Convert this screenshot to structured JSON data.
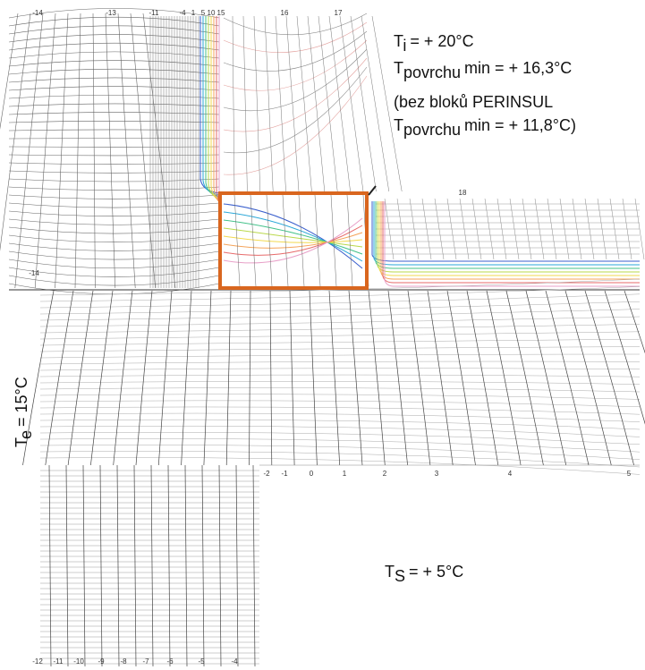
{
  "annotations": {
    "interior": {
      "symbol": "T",
      "subscript": "i",
      "value": "= + 20°C"
    },
    "surface_min": {
      "symbol": "T",
      "subscript": "povrchu",
      "value": "min = + 16,3°C"
    },
    "note": "(bez bloků PERINSUL",
    "surface_min_without": {
      "symbol": "T",
      "subscript": "povrchu",
      "value": "min = + 11,8°C)"
    },
    "exterior": {
      "symbol": "T",
      "subscript": "e",
      "value": "= 15°C"
    },
    "soil": {
      "symbol": "T",
      "subscript": "S",
      "value": "= + 5°C"
    }
  },
  "isotherm_labels": {
    "top": [
      "-14",
      "-13",
      "-11",
      "-4",
      "1",
      "5",
      "10",
      "15",
      "16",
      "17"
    ],
    "right": [
      "18"
    ],
    "left": [
      "-14"
    ],
    "middle": [
      "-2",
      "-1",
      "0",
      "1",
      "2",
      "3",
      "4",
      "5"
    ],
    "bottom": [
      "-12",
      "-11",
      "-10",
      "-9",
      "-8",
      "-7",
      "-6",
      "-5",
      "-4"
    ]
  }
}
